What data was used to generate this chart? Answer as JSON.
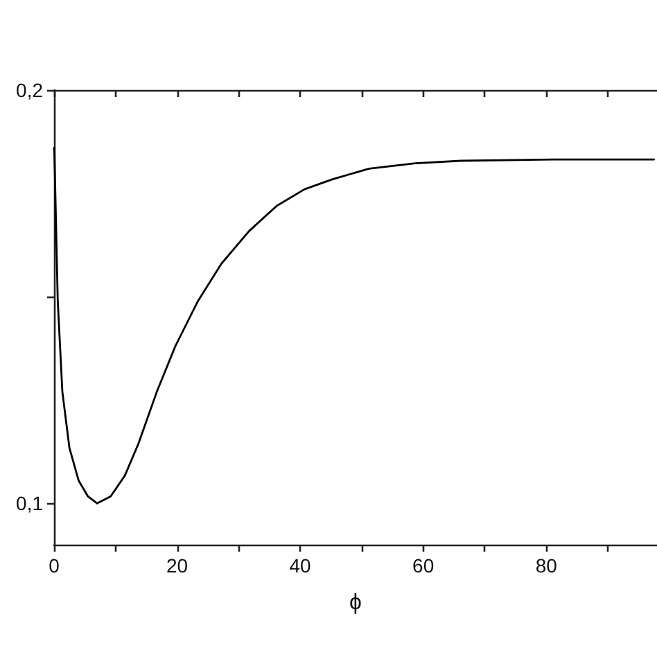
{
  "chart_data": {
    "type": "line",
    "xlabel": "ϕ",
    "x": [
      0,
      0.07,
      0.6,
      1.35,
      2.5,
      4.0,
      5.5,
      7.0,
      9.2,
      11.5,
      13.7,
      16.7,
      19.7,
      23.4,
      27.2,
      31.7,
      36.2,
      40.7,
      45.2,
      51.2,
      58.7,
      66.1,
      81.1,
      97.5
    ],
    "series": [
      {
        "color": "#000000",
        "values": [
          0.186,
          0.184,
          0.149,
          0.127,
          0.1134,
          0.1055,
          0.1017,
          0.1,
          0.1017,
          0.1067,
          0.1144,
          0.127,
          0.138,
          0.149,
          0.158,
          0.1659,
          0.172,
          0.176,
          0.1784,
          0.181,
          0.1823,
          0.1829,
          0.1832,
          0.1832
        ]
      }
    ],
    "xlim": [
      0,
      98
    ],
    "xticks": [
      0,
      {
        "value": 10,
        "label": null
      },
      20,
      {
        "value": 30,
        "label": null
      },
      40,
      {
        "value": 50,
        "label": null
      },
      60,
      {
        "value": 70,
        "label": null
      },
      80,
      {
        "value": 90,
        "label": null
      }
    ],
    "ylim": [
      0.09,
      0.2
    ],
    "yticks": [
      {
        "value": 0.1,
        "label": "0,1"
      },
      {
        "value": 0.15,
        "label": null
      },
      {
        "value": 0.2,
        "label": "0,2"
      }
    ],
    "grid": false,
    "marker": "none",
    "line_style": "solid"
  }
}
